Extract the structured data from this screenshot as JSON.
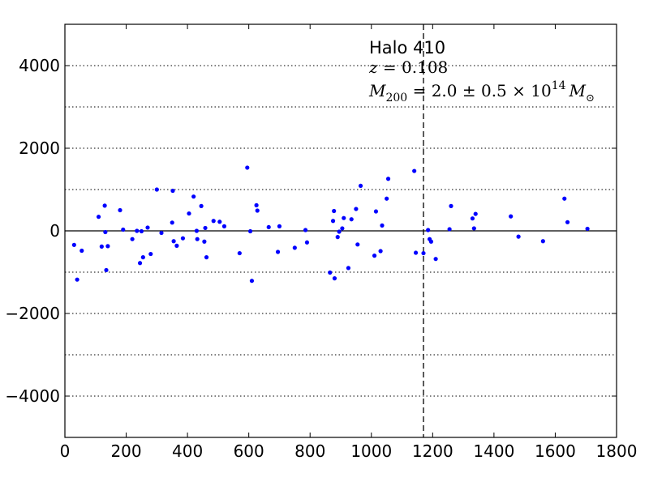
{
  "chart_data": {
    "type": "scatter",
    "title": "",
    "xlabel": "",
    "ylabel": "",
    "xlim": [
      0,
      1800
    ],
    "ylim": [
      -5000,
      5000
    ],
    "x_ticks": [
      0,
      200,
      400,
      600,
      800,
      1000,
      1200,
      1400,
      1600,
      1800
    ],
    "y_ticks": [
      -4000,
      -2000,
      0,
      2000,
      4000
    ],
    "y_tick_labels": [
      "−4000",
      "−2000",
      "0",
      "2000",
      "4000"
    ],
    "dotted_grid_y": [
      -4000,
      -3000,
      -2000,
      -1000,
      1000,
      2000,
      3000,
      4000
    ],
    "zero_line_y": 0,
    "vertical_dashed_line_x": 1170,
    "grid": "horizontal dotted lines only",
    "legend": "none",
    "marker_color": "#0000ff",
    "annotations": {
      "halo": "Halo 410",
      "redshift_symbol": "z",
      "redshift_rest": " = 0.108",
      "mass_symbol": "M",
      "mass_sub": "200",
      "mass_value": " = 2.0 ± 0.5 × 10",
      "mass_exp": "14",
      "mass_unit": "M",
      "mass_unit_sub": "⊙"
    },
    "series": [
      {
        "x": [
          30,
          40,
          55,
          110,
          120,
          130,
          132,
          135,
          140,
          180,
          190,
          220,
          235,
          245,
          250,
          255,
          270,
          280,
          300,
          315,
          350,
          352,
          355,
          365,
          385,
          405,
          420,
          430,
          432,
          445,
          455,
          458,
          462,
          485,
          505,
          520,
          570,
          595,
          605,
          610,
          625,
          628,
          665,
          695,
          700,
          750,
          785,
          790,
          865,
          875,
          878,
          880,
          890,
          895,
          905,
          910,
          925,
          935,
          950,
          955,
          965,
          1010,
          1015,
          1030,
          1035,
          1050,
          1055,
          1140,
          1145,
          1170,
          1185,
          1190,
          1195,
          1210,
          1255,
          1260,
          1330,
          1335,
          1340,
          1455,
          1480,
          1560,
          1630,
          1640,
          1705
        ],
        "y": [
          -340,
          -1180,
          -480,
          340,
          -380,
          610,
          -30,
          -950,
          -370,
          500,
          30,
          -200,
          0,
          -780,
          -10,
          -640,
          80,
          -560,
          1000,
          -50,
          200,
          970,
          -250,
          -360,
          -180,
          420,
          830,
          0,
          -200,
          600,
          -260,
          70,
          -640,
          240,
          220,
          110,
          -540,
          1530,
          -10,
          -1210,
          620,
          490,
          90,
          -510,
          110,
          -410,
          20,
          -280,
          -1010,
          240,
          480,
          -1150,
          -150,
          -20,
          60,
          310,
          -900,
          280,
          530,
          -330,
          1090,
          -600,
          470,
          -490,
          130,
          780,
          1260,
          1450,
          -530,
          -540,
          20,
          -200,
          -260,
          -680,
          40,
          600,
          300,
          60,
          410,
          350,
          -140,
          -250,
          780,
          210,
          50
        ]
      }
    ]
  }
}
